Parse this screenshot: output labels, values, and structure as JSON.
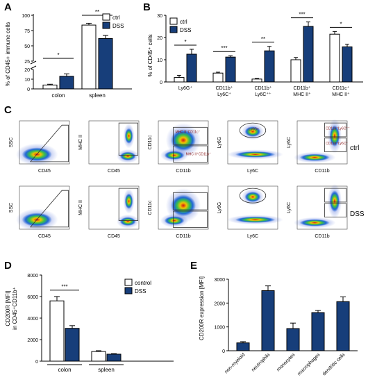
{
  "panels": {
    "A": {
      "letter": "A",
      "chart_data": {
        "type": "bar",
        "categories": [
          "colon",
          "spleen"
        ],
        "series": [
          {
            "name": "ctrl",
            "color": "#ffffff",
            "values": [
              4,
              84
            ],
            "errors": [
              0.8,
              3
            ]
          },
          {
            "name": "DSS",
            "color": "#173e7a",
            "values": [
              13,
              62
            ],
            "errors": [
              2.5,
              5
            ]
          }
        ],
        "ylabel": "% of CD45+ immune cells",
        "yticks": [
          "0",
          "10",
          "20",
          "25",
          "50",
          "75",
          "100"
        ],
        "broken_axis": true,
        "significance": [
          "*",
          "**"
        ],
        "legend_position": "top-right"
      }
    },
    "B": {
      "letter": "B",
      "chart_data": {
        "type": "bar",
        "categories": [
          "Ly6G⁺",
          "CD11b⁺ Ly6C⁺",
          "CD11b⁺ Ly6C⁺⁺",
          "CD11b⁺ MHC II⁺",
          "CD11c⁺ MHC II⁺"
        ],
        "category_lines": [
          [
            "Ly6G⁺"
          ],
          [
            "CD11b⁺",
            "Ly6C⁺"
          ],
          [
            "CD11b⁺",
            "Ly6C⁺⁺"
          ],
          [
            "CD11b⁺",
            "MHC II⁺"
          ],
          [
            "CD11c⁺",
            "MHC II⁺"
          ]
        ],
        "series": [
          {
            "name": "ctrl",
            "color": "#ffffff",
            "values": [
              2,
              4,
              1.3,
              10,
              21.5
            ],
            "errors": [
              1,
              0.4,
              0.3,
              1,
              1.2
            ]
          },
          {
            "name": "DSS",
            "color": "#173e7a",
            "values": [
              12.5,
              11.2,
              14,
              25,
              15.8
            ],
            "errors": [
              2.2,
              0.6,
              2,
              2,
              1.2
            ]
          }
        ],
        "ylabel": "% of CD45⁺ cells",
        "ylim": [
          0,
          30
        ],
        "yticks": [
          "0",
          "10",
          "20",
          "30"
        ],
        "significance": [
          "*",
          "***",
          "**",
          "***",
          "*"
        ],
        "legend_position": "top-left"
      }
    },
    "C": {
      "letter": "C",
      "row_labels": [
        "ctrl",
        "DSS"
      ],
      "plots": [
        {
          "xlabel": "CD45",
          "ylabel": "SSC"
        },
        {
          "xlabel": "CD45",
          "ylabel": "MHC II"
        },
        {
          "xlabel": "CD11b",
          "ylabel": "CD11c"
        },
        {
          "xlabel": "Ly6C",
          "ylabel": "Ly6G"
        },
        {
          "xlabel": "CD11b",
          "ylabel": "Ly6C"
        }
      ],
      "gate_labels": {
        "mhc_cd11c": "MHC II⁺CD11c⁺",
        "mhc_cd11b": "MHC II⁺CD11b⁺",
        "ly6g": "Ly6G+",
        "ly6c_hi": "CD11b⁺Ly6C⁺⁺",
        "ly6c_lo": "CD11b⁺Ly6C⁺"
      }
    },
    "D": {
      "letter": "D",
      "chart_data": {
        "type": "bar",
        "categories": [
          "colon",
          "spleen"
        ],
        "series": [
          {
            "name": "control",
            "color": "#ffffff",
            "values": [
              5600,
              900
            ],
            "errors": [
              400,
              70
            ]
          },
          {
            "name": "DSS",
            "color": "#173e7a",
            "values": [
              3050,
              650
            ],
            "errors": [
              250,
              50
            ]
          }
        ],
        "ylabel_lines": [
          "CD200R [MFI]",
          "in CD45⁺CD11b⁺"
        ],
        "ylim": [
          0,
          8000
        ],
        "yticks": [
          "0",
          "2000",
          "4000",
          "6000",
          "8000"
        ],
        "significance": [
          "***"
        ],
        "legend_position": "top-right"
      }
    },
    "E": {
      "letter": "E",
      "chart_data": {
        "type": "bar",
        "categories": [
          "non-myeloid",
          "neutrophils",
          "monocytes",
          "macrophages",
          "dendritic cells"
        ],
        "values": [
          330,
          2520,
          930,
          1600,
          2060
        ],
        "errors": [
          50,
          200,
          230,
          90,
          200
        ],
        "color": "#173e7a",
        "ylabel": "CD200R expression [MFI]",
        "ylim": [
          0,
          3000
        ],
        "yticks": [
          "0",
          "1000",
          "2000",
          "3000"
        ]
      }
    }
  }
}
